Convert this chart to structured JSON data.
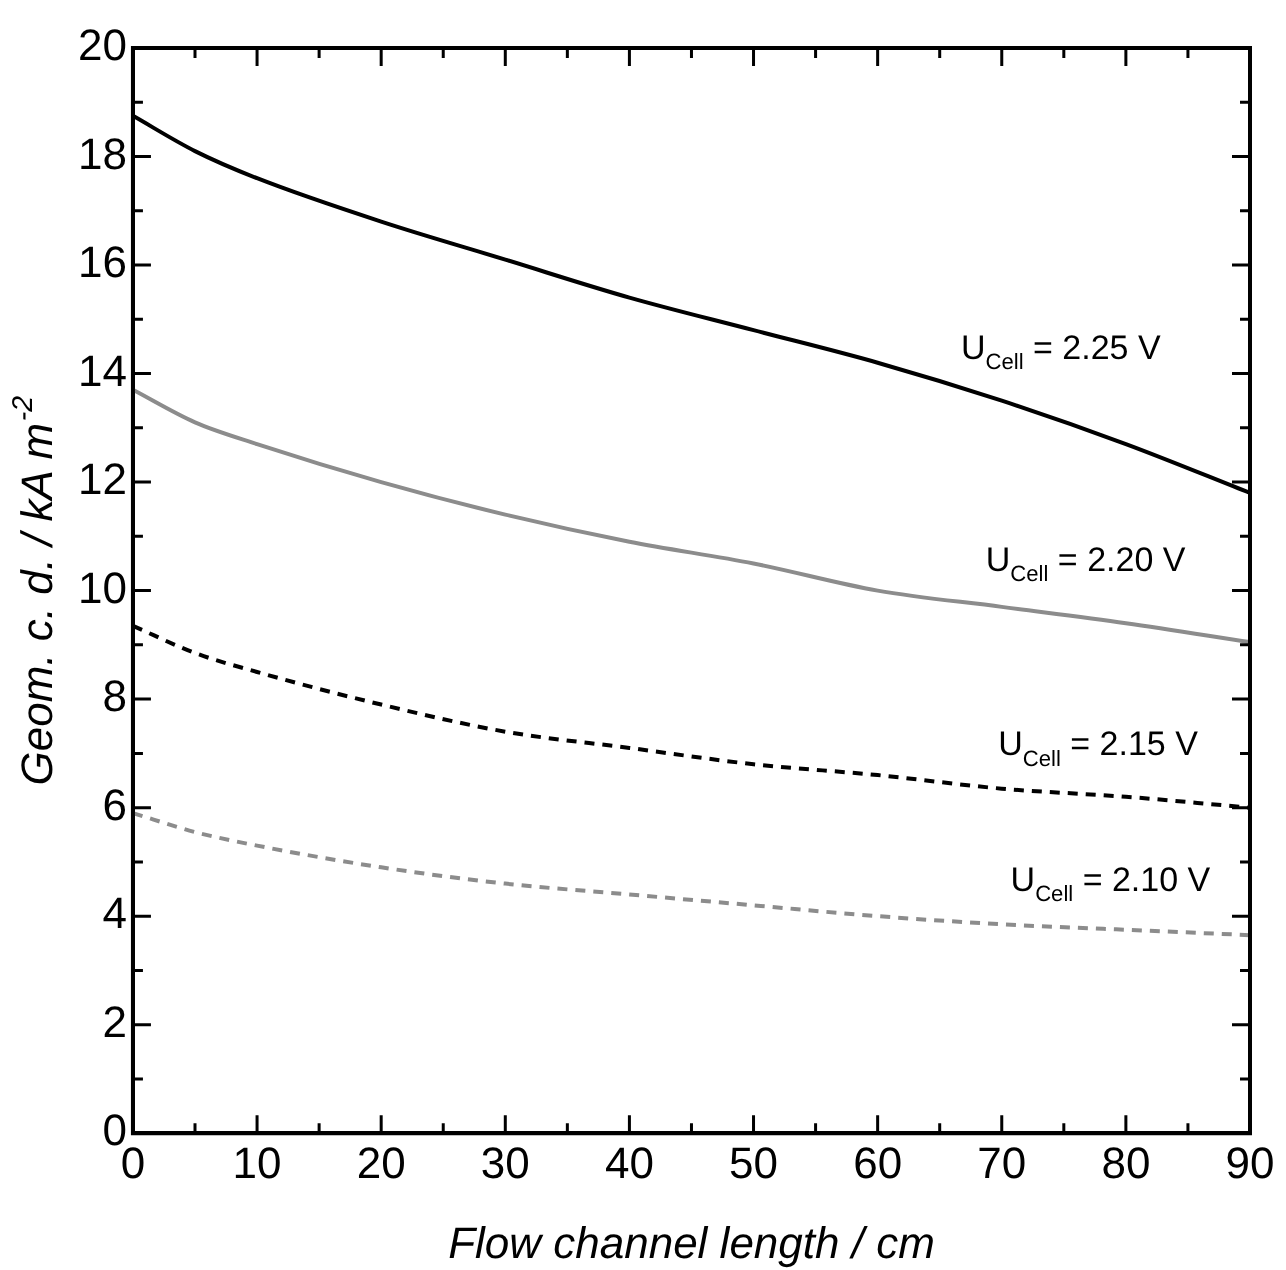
{
  "chart_data": {
    "type": "line",
    "xlabel": "Flow channel length / cm",
    "ylabel": "Geom. c. d. / kA m$^{-2}$",
    "x": [
      0,
      5,
      10,
      20,
      30,
      40,
      50,
      60,
      70,
      80,
      90
    ],
    "series": [
      {
        "color": "#000000",
        "line_style": "solid",
        "values": [
          18.75,
          18.1,
          17.6,
          16.8,
          16.1,
          15.4,
          14.8,
          14.2,
          13.5,
          12.7,
          11.8
        ]
      },
      {
        "color": "#8c8c8c",
        "line_style": "solid",
        "values": [
          13.7,
          13.1,
          12.7,
          12.0,
          11.4,
          10.9,
          10.5,
          10.0,
          9.7,
          9.4,
          9.05
        ]
      },
      {
        "color": "#000000",
        "line_style": "dashed",
        "values": [
          9.35,
          8.85,
          8.5,
          7.9,
          7.4,
          7.1,
          6.8,
          6.6,
          6.35,
          6.2,
          6.0
        ]
      },
      {
        "color": "#8c8c8c",
        "line_style": "dashed",
        "values": [
          5.9,
          5.55,
          5.3,
          4.9,
          4.6,
          4.4,
          4.2,
          4.0,
          3.85,
          3.75,
          3.65
        ]
      }
    ],
    "xlim": [
      0,
      90
    ],
    "xticks": [
      0,
      {
        "value": 5,
        "label": null
      },
      10,
      {
        "value": 15,
        "label": null
      },
      20,
      {
        "value": 25,
        "label": null
      },
      30,
      {
        "value": 35,
        "label": null
      },
      40,
      {
        "value": 45,
        "label": null
      },
      50,
      {
        "value": 55,
        "label": null
      },
      60,
      {
        "value": 65,
        "label": null
      },
      70,
      {
        "value": 75,
        "label": null
      },
      80,
      {
        "value": 85,
        "label": null
      },
      90
    ],
    "ylim": [
      0,
      20
    ],
    "yticks": [
      0,
      {
        "value": 1,
        "label": null
      },
      2,
      {
        "value": 3,
        "label": null
      },
      4,
      {
        "value": 5,
        "label": null
      },
      6,
      {
        "value": 7,
        "label": null
      },
      8,
      {
        "value": 9,
        "label": null
      },
      10,
      {
        "value": 11,
        "label": null
      },
      12,
      {
        "value": 13,
        "label": null
      },
      14,
      {
        "value": 15,
        "label": null
      },
      16,
      {
        "value": 17,
        "label": null
      },
      18,
      {
        "value": 19,
        "label": null
      },
      20
    ],
    "annotations": [
      {
        "text": "U$_{Cell}$ = 2.25 V",
        "x": 68,
        "y": 13.6
      },
      {
        "text": "U$_{Cell}$ = 2.20 V",
        "x": 70,
        "y": 9.7
      },
      {
        "text": "U$_{Cell}$ = 2.15 V",
        "x": 71,
        "y": 6.3
      },
      {
        "text": "U$_{Cell}$ = 2.10 V",
        "x": 72,
        "y": 3.8
      }
    ],
    "grid": false,
    "legend": false,
    "marker": "none"
  }
}
